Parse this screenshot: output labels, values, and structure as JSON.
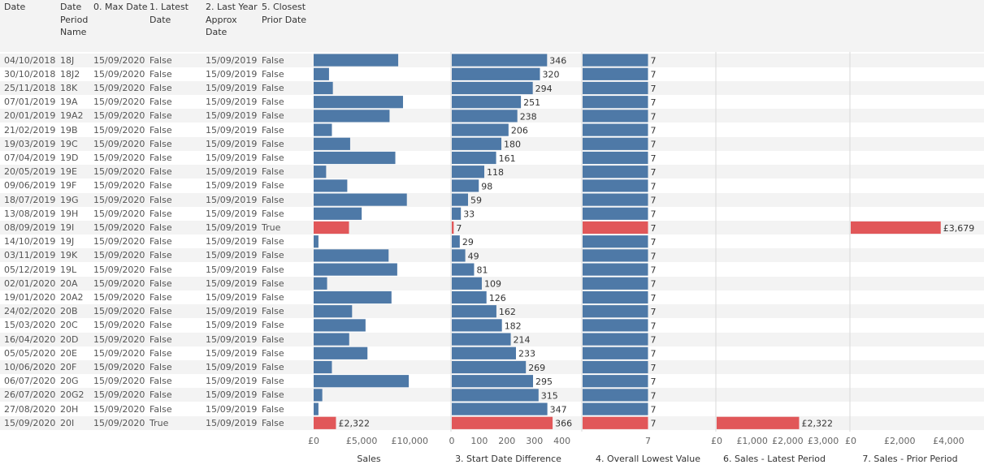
{
  "columns": [
    "Date",
    "Date\nPeriod\nName",
    "0. Max Date",
    "1. Latest\nDate",
    "2. Last Year\nApprox\nDate",
    "5. Closest\nPrior Date"
  ],
  "colors": {
    "blue": "#4e79a7",
    "red": "#e15759",
    "header_bg": "#f3f3f3"
  },
  "chart_data": {
    "type": "bar",
    "rows": [
      {
        "date": "04/10/2018",
        "period": "18J",
        "max_date": "15/09/2020",
        "latest": "False",
        "last_year": "15/09/2019",
        "closest": "False",
        "sales": 8800,
        "start_diff": 346,
        "lowest": 7,
        "sales_latest": null,
        "sales_prior": null
      },
      {
        "date": "30/10/2018",
        "period": "18J2",
        "max_date": "15/09/2020",
        "latest": "False",
        "last_year": "15/09/2019",
        "closest": "False",
        "sales": 1600,
        "start_diff": 320,
        "lowest": 7,
        "sales_latest": null,
        "sales_prior": null
      },
      {
        "date": "25/11/2018",
        "period": "18K",
        "max_date": "15/09/2020",
        "latest": "False",
        "last_year": "15/09/2019",
        "closest": "False",
        "sales": 2000,
        "start_diff": 294,
        "lowest": 7,
        "sales_latest": null,
        "sales_prior": null
      },
      {
        "date": "07/01/2019",
        "period": "19A",
        "max_date": "15/09/2020",
        "latest": "False",
        "last_year": "15/09/2019",
        "closest": "False",
        "sales": 9300,
        "start_diff": 251,
        "lowest": 7,
        "sales_latest": null,
        "sales_prior": null
      },
      {
        "date": "20/01/2019",
        "period": "19A2",
        "max_date": "15/09/2020",
        "latest": "False",
        "last_year": "15/09/2019",
        "closest": "False",
        "sales": 7900,
        "start_diff": 238,
        "lowest": 7,
        "sales_latest": null,
        "sales_prior": null
      },
      {
        "date": "21/02/2019",
        "period": "19B",
        "max_date": "15/09/2020",
        "latest": "False",
        "last_year": "15/09/2019",
        "closest": "False",
        "sales": 1900,
        "start_diff": 206,
        "lowest": 7,
        "sales_latest": null,
        "sales_prior": null
      },
      {
        "date": "19/03/2019",
        "period": "19C",
        "max_date": "15/09/2020",
        "latest": "False",
        "last_year": "15/09/2019",
        "closest": "False",
        "sales": 3800,
        "start_diff": 180,
        "lowest": 7,
        "sales_latest": null,
        "sales_prior": null
      },
      {
        "date": "07/04/2019",
        "period": "19D",
        "max_date": "15/09/2020",
        "latest": "False",
        "last_year": "15/09/2019",
        "closest": "False",
        "sales": 8500,
        "start_diff": 161,
        "lowest": 7,
        "sales_latest": null,
        "sales_prior": null
      },
      {
        "date": "20/05/2019",
        "period": "19E",
        "max_date": "15/09/2020",
        "latest": "False",
        "last_year": "15/09/2019",
        "closest": "False",
        "sales": 1300,
        "start_diff": 118,
        "lowest": 7,
        "sales_latest": null,
        "sales_prior": null
      },
      {
        "date": "09/06/2019",
        "period": "19F",
        "max_date": "15/09/2020",
        "latest": "False",
        "last_year": "15/09/2019",
        "closest": "False",
        "sales": 3500,
        "start_diff": 98,
        "lowest": 7,
        "sales_latest": null,
        "sales_prior": null
      },
      {
        "date": "18/07/2019",
        "period": "19G",
        "max_date": "15/09/2020",
        "latest": "False",
        "last_year": "15/09/2019",
        "closest": "False",
        "sales": 9700,
        "start_diff": 59,
        "lowest": 7,
        "sales_latest": null,
        "sales_prior": null
      },
      {
        "date": "13/08/2019",
        "period": "19H",
        "max_date": "15/09/2020",
        "latest": "False",
        "last_year": "15/09/2019",
        "closest": "False",
        "sales": 5000,
        "start_diff": 33,
        "lowest": 7,
        "sales_latest": null,
        "sales_prior": null
      },
      {
        "date": "08/09/2019",
        "period": "19I",
        "max_date": "15/09/2020",
        "latest": "False",
        "last_year": "15/09/2019",
        "closest": "True",
        "sales": 3679,
        "start_diff": 7,
        "lowest": 7,
        "sales_latest": null,
        "sales_prior": 3679,
        "sales_prior_label": "£3,679"
      },
      {
        "date": "14/10/2019",
        "period": "19J",
        "max_date": "15/09/2020",
        "latest": "False",
        "last_year": "15/09/2019",
        "closest": "False",
        "sales": 500,
        "start_diff": 29,
        "lowest": 7,
        "sales_latest": null,
        "sales_prior": null
      },
      {
        "date": "03/11/2019",
        "period": "19K",
        "max_date": "15/09/2020",
        "latest": "False",
        "last_year": "15/09/2019",
        "closest": "False",
        "sales": 7800,
        "start_diff": 49,
        "lowest": 7,
        "sales_latest": null,
        "sales_prior": null
      },
      {
        "date": "05/12/2019",
        "period": "19L",
        "max_date": "15/09/2020",
        "latest": "False",
        "last_year": "15/09/2019",
        "closest": "False",
        "sales": 8700,
        "start_diff": 81,
        "lowest": 7,
        "sales_latest": null,
        "sales_prior": null
      },
      {
        "date": "02/01/2020",
        "period": "20A",
        "max_date": "15/09/2020",
        "latest": "False",
        "last_year": "15/09/2019",
        "closest": "False",
        "sales": 1400,
        "start_diff": 109,
        "lowest": 7,
        "sales_latest": null,
        "sales_prior": null
      },
      {
        "date": "19/01/2020",
        "period": "20A2",
        "max_date": "15/09/2020",
        "latest": "False",
        "last_year": "15/09/2019",
        "closest": "False",
        "sales": 8100,
        "start_diff": 126,
        "lowest": 7,
        "sales_latest": null,
        "sales_prior": null
      },
      {
        "date": "24/02/2020",
        "period": "20B",
        "max_date": "15/09/2020",
        "latest": "False",
        "last_year": "15/09/2019",
        "closest": "False",
        "sales": 4000,
        "start_diff": 162,
        "lowest": 7,
        "sales_latest": null,
        "sales_prior": null
      },
      {
        "date": "15/03/2020",
        "period": "20C",
        "max_date": "15/09/2020",
        "latest": "False",
        "last_year": "15/09/2019",
        "closest": "False",
        "sales": 5400,
        "start_diff": 182,
        "lowest": 7,
        "sales_latest": null,
        "sales_prior": null
      },
      {
        "date": "16/04/2020",
        "period": "20D",
        "max_date": "15/09/2020",
        "latest": "False",
        "last_year": "15/09/2019",
        "closest": "False",
        "sales": 3700,
        "start_diff": 214,
        "lowest": 7,
        "sales_latest": null,
        "sales_prior": null
      },
      {
        "date": "05/05/2020",
        "period": "20E",
        "max_date": "15/09/2020",
        "latest": "False",
        "last_year": "15/09/2019",
        "closest": "False",
        "sales": 5600,
        "start_diff": 233,
        "lowest": 7,
        "sales_latest": null,
        "sales_prior": null
      },
      {
        "date": "10/06/2020",
        "period": "20F",
        "max_date": "15/09/2020",
        "latest": "False",
        "last_year": "15/09/2019",
        "closest": "False",
        "sales": 1900,
        "start_diff": 269,
        "lowest": 7,
        "sales_latest": null,
        "sales_prior": null
      },
      {
        "date": "06/07/2020",
        "period": "20G",
        "max_date": "15/09/2020",
        "latest": "False",
        "last_year": "15/09/2019",
        "closest": "False",
        "sales": 9900,
        "start_diff": 295,
        "lowest": 7,
        "sales_latest": null,
        "sales_prior": null
      },
      {
        "date": "26/07/2020",
        "period": "20G2",
        "max_date": "15/09/2020",
        "latest": "False",
        "last_year": "15/09/2019",
        "closest": "False",
        "sales": 900,
        "start_diff": 315,
        "lowest": 7,
        "sales_latest": null,
        "sales_prior": null
      },
      {
        "date": "27/08/2020",
        "period": "20H",
        "max_date": "15/09/2020",
        "latest": "False",
        "last_year": "15/09/2019",
        "closest": "False",
        "sales": 500,
        "start_diff": 347,
        "lowest": 7,
        "sales_latest": null,
        "sales_prior": null
      },
      {
        "date": "15/09/2020",
        "period": "20I",
        "max_date": "15/09/2020",
        "latest": "True",
        "last_year": "15/09/2019",
        "closest": "False",
        "sales": 2322,
        "sales_label": "£2,322",
        "start_diff": 366,
        "lowest": 7,
        "sales_latest": 2322,
        "sales_latest_label": "£2,322",
        "sales_prior": null
      }
    ],
    "panels": [
      {
        "field": "sales",
        "title": "Sales",
        "xlim": [
          0,
          11500
        ],
        "ticks": [
          0,
          5000,
          10000
        ],
        "tick_labels": [
          "£0",
          "£5,000",
          "£10,000"
        ]
      },
      {
        "field": "start_diff",
        "title": "3. Start Date Difference",
        "xlim": [
          0,
          410
        ],
        "ticks": [
          0,
          100,
          200,
          300,
          400
        ],
        "tick_labels": [
          "0",
          "100",
          "200",
          "300",
          "400"
        ]
      },
      {
        "field": "lowest",
        "title": "4. Overall Lowest Value",
        "xlim": [
          0,
          14
        ],
        "ticks": [
          7
        ],
        "tick_labels": [
          "7"
        ]
      },
      {
        "field": "sales_latest",
        "title": "6. Sales - Latest Period",
        "xlim": [
          0,
          3250
        ],
        "ticks": [
          0,
          1000,
          2000,
          3000
        ],
        "tick_labels": [
          "£0",
          "£1,000",
          "£2,000",
          "£3,000"
        ]
      },
      {
        "field": "sales_prior",
        "title": "7. Sales - Prior Period",
        "xlim": [
          0,
          4850
        ],
        "ticks": [
          0,
          2000,
          4000
        ],
        "tick_labels": [
          "£0",
          "£2,000",
          "£4,000"
        ]
      }
    ]
  }
}
